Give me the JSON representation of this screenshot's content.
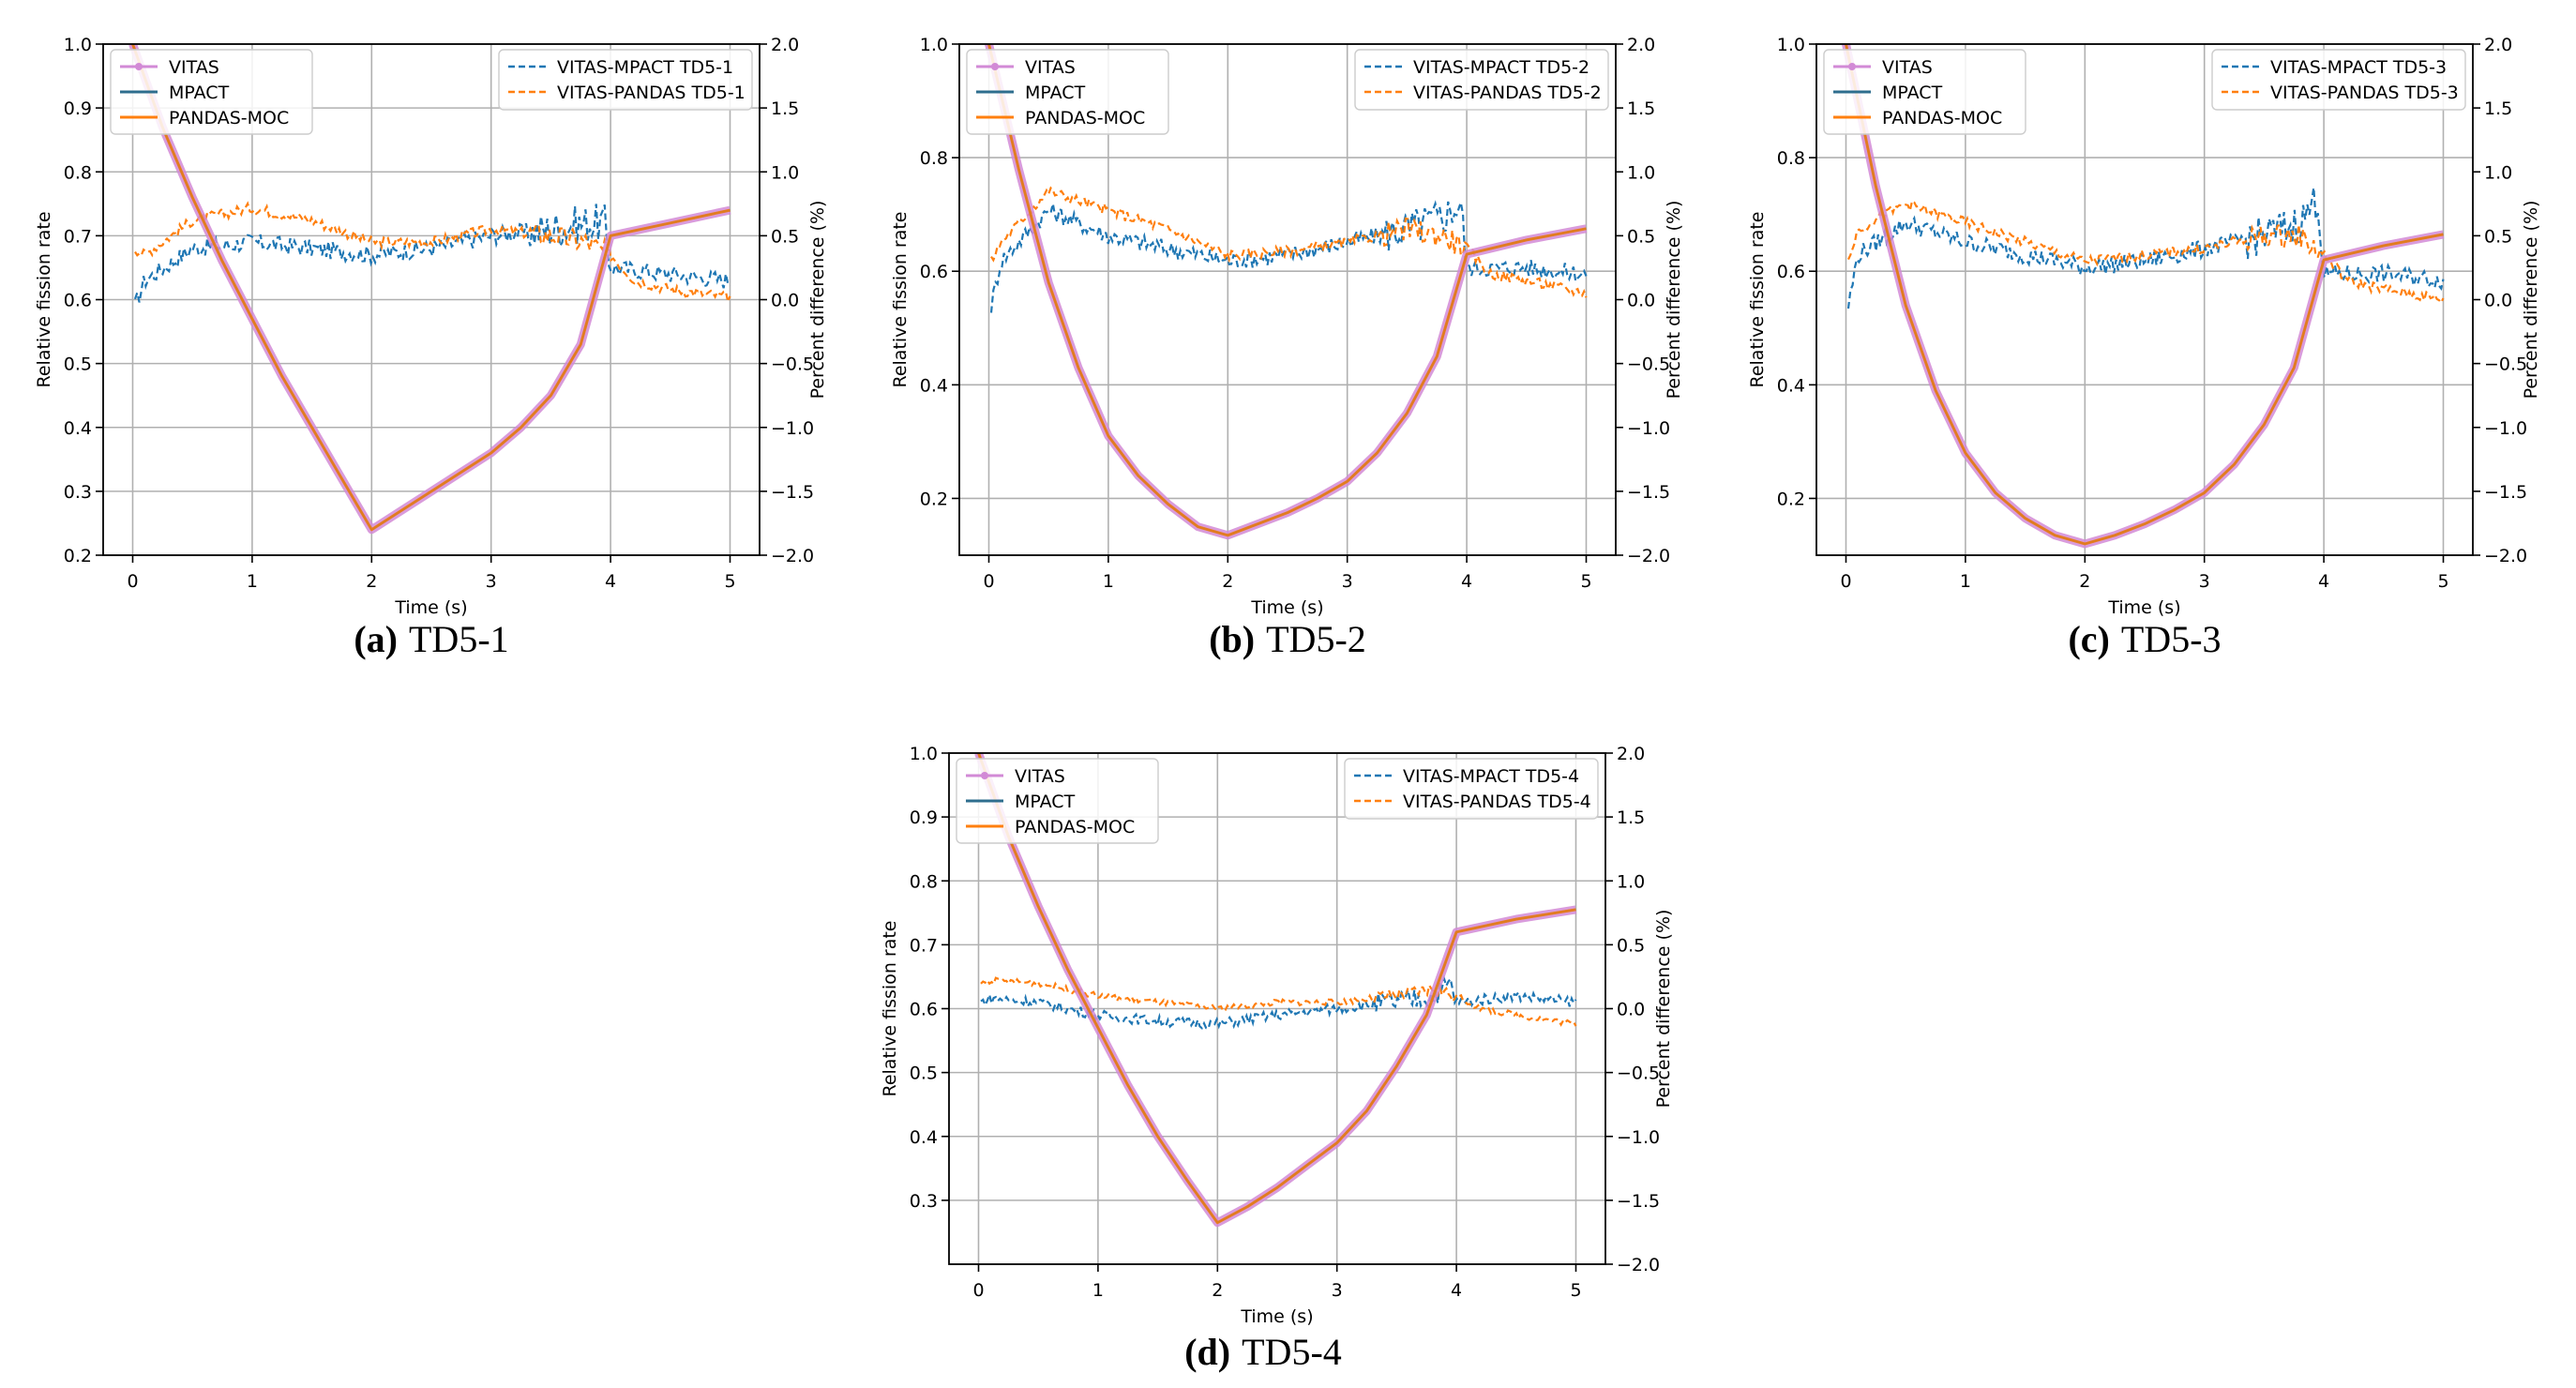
{
  "figure": {
    "xlabel": "Time (s)",
    "ylabel_left": "Relative fission rate",
    "ylabel_right": "Percent difference (%)",
    "x_ticks": [
      0,
      1,
      2,
      3,
      4,
      5
    ],
    "right_ticks": [
      -2.0,
      -1.5,
      -1.0,
      -0.5,
      0.0,
      0.5,
      1.0,
      1.5,
      2.0
    ],
    "legend_left": [
      "VITAS",
      "MPACT",
      "PANDAS-MOC"
    ],
    "colors": {
      "vitas": "#d28ad6",
      "mpact": "#2e6e8e",
      "pandas": "#ff7f0e",
      "diff_mpact": "#1f77b4",
      "diff_pandas": "#ff7f0e",
      "grid": "#b0b0b0"
    }
  },
  "chart_data": [
    {
      "type": "line",
      "label": "(a)",
      "caption": "TD5-1",
      "xlim": [
        0,
        5
      ],
      "ylim": [
        0.2,
        1.0
      ],
      "ylim_right": [
        -2.0,
        2.0
      ],
      "left_ticks": [
        0.2,
        0.3,
        0.4,
        0.5,
        0.6,
        0.7,
        0.8,
        0.9,
        1.0
      ],
      "fission_rate": {
        "x": [
          0,
          0.25,
          0.5,
          0.75,
          1.0,
          1.25,
          1.5,
          1.75,
          2.0,
          2.25,
          2.5,
          2.75,
          3.0,
          3.25,
          3.5,
          3.75,
          4.0,
          4.5,
          5.0
        ],
        "y": [
          1.0,
          0.87,
          0.76,
          0.66,
          0.57,
          0.48,
          0.4,
          0.32,
          0.24,
          0.27,
          0.3,
          0.33,
          0.36,
          0.4,
          0.45,
          0.53,
          0.7,
          0.72,
          0.74
        ]
      },
      "diff_legend": [
        "VITAS-MPACT TD5-1",
        "VITAS-PANDAS TD5-1"
      ],
      "diff_mpact": {
        "x": [
          0.02,
          0.1,
          0.5,
          1.0,
          1.5,
          2.0,
          2.5,
          3.0,
          3.5,
          3.8,
          3.95,
          4.0,
          4.5,
          5.0
        ],
        "y": [
          -0.05,
          0.15,
          0.4,
          0.45,
          0.4,
          0.35,
          0.4,
          0.5,
          0.55,
          0.6,
          0.6,
          0.25,
          0.2,
          0.15
        ]
      },
      "diff_pandas": {
        "x": [
          0.02,
          0.1,
          0.5,
          1.0,
          1.5,
          2.0,
          2.5,
          3.0,
          3.5,
          3.8,
          4.0,
          4.2,
          4.5,
          5.0
        ],
        "y": [
          0.4,
          0.35,
          0.62,
          0.72,
          0.62,
          0.45,
          0.45,
          0.55,
          0.5,
          0.45,
          0.35,
          0.15,
          0.08,
          0.02
        ]
      },
      "noise": 0.07
    },
    {
      "type": "line",
      "label": "(b)",
      "caption": "TD5-2",
      "xlim": [
        0,
        5
      ],
      "ylim": [
        0.1,
        1.0
      ],
      "ylim_right": [
        -2.0,
        2.0
      ],
      "left_ticks": [
        0.2,
        0.4,
        0.6,
        0.8,
        1.0
      ],
      "fission_rate": {
        "x": [
          0,
          0.25,
          0.5,
          0.75,
          1.0,
          1.25,
          1.5,
          1.75,
          2.0,
          2.25,
          2.5,
          2.75,
          3.0,
          3.25,
          3.5,
          3.75,
          4.0,
          4.5,
          5.0
        ],
        "y": [
          1.0,
          0.78,
          0.58,
          0.43,
          0.31,
          0.24,
          0.19,
          0.15,
          0.135,
          0.155,
          0.175,
          0.2,
          0.23,
          0.28,
          0.35,
          0.45,
          0.63,
          0.655,
          0.675
        ]
      },
      "diff_legend": [
        "VITAS-MPACT TD5-2",
        "VITAS-PANDAS TD5-2"
      ],
      "diff_mpact": {
        "x": [
          0.02,
          0.1,
          0.5,
          1.0,
          1.5,
          2.0,
          2.5,
          3.0,
          3.5,
          3.8,
          3.95,
          4.0,
          4.5,
          5.0
        ],
        "y": [
          -0.05,
          0.3,
          0.7,
          0.5,
          0.4,
          0.3,
          0.35,
          0.45,
          0.55,
          0.65,
          0.75,
          0.25,
          0.25,
          0.2
        ]
      },
      "diff_pandas": {
        "x": [
          0.02,
          0.1,
          0.5,
          1.0,
          1.5,
          2.0,
          2.5,
          3.0,
          3.5,
          3.8,
          4.0,
          4.2,
          4.5,
          5.0
        ],
        "y": [
          0.3,
          0.45,
          0.85,
          0.7,
          0.55,
          0.35,
          0.38,
          0.45,
          0.55,
          0.5,
          0.4,
          0.2,
          0.15,
          0.05
        ]
      },
      "noise": 0.07
    },
    {
      "type": "line",
      "label": "(c)",
      "caption": "TD5-3",
      "xlim": [
        0,
        5
      ],
      "ylim": [
        0.1,
        1.0
      ],
      "ylim_right": [
        -2.0,
        2.0
      ],
      "left_ticks": [
        0.2,
        0.4,
        0.6,
        0.8,
        1.0
      ],
      "fission_rate": {
        "x": [
          0,
          0.25,
          0.5,
          0.75,
          1.0,
          1.25,
          1.5,
          1.75,
          2.0,
          2.25,
          2.5,
          2.75,
          3.0,
          3.25,
          3.5,
          3.75,
          4.0,
          4.5,
          5.0
        ],
        "y": [
          1.0,
          0.75,
          0.54,
          0.39,
          0.28,
          0.21,
          0.165,
          0.135,
          0.12,
          0.135,
          0.155,
          0.18,
          0.21,
          0.26,
          0.33,
          0.43,
          0.62,
          0.645,
          0.665
        ]
      },
      "diff_legend": [
        "VITAS-MPACT TD5-3",
        "VITAS-PANDAS TD5-3"
      ],
      "diff_mpact": {
        "x": [
          0.02,
          0.1,
          0.5,
          1.0,
          1.5,
          2.0,
          2.5,
          3.0,
          3.5,
          3.8,
          3.95,
          4.0,
          4.5,
          5.0
        ],
        "y": [
          -0.05,
          0.35,
          0.6,
          0.45,
          0.35,
          0.25,
          0.3,
          0.4,
          0.5,
          0.6,
          0.8,
          0.2,
          0.2,
          0.15
        ]
      },
      "diff_pandas": {
        "x": [
          0.02,
          0.1,
          0.5,
          1.0,
          1.5,
          2.0,
          2.5,
          3.0,
          3.5,
          3.8,
          4.0,
          4.2,
          4.5,
          5.0
        ],
        "y": [
          0.3,
          0.55,
          0.75,
          0.6,
          0.45,
          0.3,
          0.35,
          0.4,
          0.5,
          0.5,
          0.35,
          0.15,
          0.08,
          0.0
        ]
      },
      "noise": 0.07
    },
    {
      "type": "line",
      "label": "(d)",
      "caption": "TD5-4",
      "xlim": [
        0,
        5
      ],
      "ylim": [
        0.2,
        1.0
      ],
      "ylim_right": [
        -2.0,
        2.0
      ],
      "left_ticks": [
        0.3,
        0.4,
        0.5,
        0.6,
        0.7,
        0.8,
        0.9,
        1.0
      ],
      "fission_rate": {
        "x": [
          0,
          0.25,
          0.5,
          0.75,
          1.0,
          1.25,
          1.5,
          1.75,
          2.0,
          2.25,
          2.5,
          2.75,
          3.0,
          3.25,
          3.5,
          3.75,
          4.0,
          4.5,
          5.0
        ],
        "y": [
          1.0,
          0.87,
          0.76,
          0.66,
          0.57,
          0.48,
          0.4,
          0.33,
          0.265,
          0.29,
          0.32,
          0.355,
          0.39,
          0.44,
          0.51,
          0.59,
          0.72,
          0.74,
          0.755
        ]
      },
      "diff_legend": [
        "VITAS-MPACT TD5-4",
        "VITAS-PANDAS TD5-4"
      ],
      "diff_mpact": {
        "x": [
          0.02,
          0.1,
          0.5,
          1.0,
          1.5,
          2.0,
          2.5,
          3.0,
          3.5,
          3.8,
          3.95,
          4.0,
          4.5,
          5.0
        ],
        "y": [
          0.05,
          0.08,
          0.05,
          -0.05,
          -0.1,
          -0.12,
          -0.05,
          0.0,
          0.05,
          0.1,
          0.2,
          0.05,
          0.1,
          0.05
        ]
      },
      "diff_pandas": {
        "x": [
          0.02,
          0.1,
          0.5,
          1.0,
          1.5,
          2.0,
          2.5,
          3.0,
          3.5,
          3.8,
          4.0,
          4.2,
          4.5,
          5.0
        ],
        "y": [
          0.2,
          0.22,
          0.2,
          0.1,
          0.05,
          0.0,
          0.05,
          0.05,
          0.1,
          0.15,
          0.1,
          0.0,
          -0.05,
          -0.12
        ]
      },
      "noise": 0.04
    }
  ]
}
